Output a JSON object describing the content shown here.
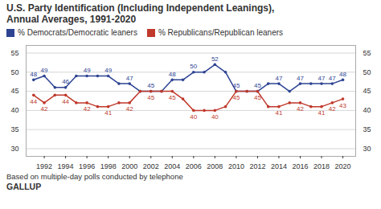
{
  "chart_data": {
    "type": "line",
    "title": "U.S. Party Identification (Including Independent Leanings),\nAnnual Averages, 1991-2020",
    "x": [
      1991,
      1992,
      1993,
      1994,
      1995,
      1996,
      1997,
      1998,
      1999,
      2000,
      2001,
      2002,
      2003,
      2004,
      2005,
      2006,
      2007,
      2008,
      2009,
      2010,
      2011,
      2012,
      2013,
      2014,
      2015,
      2016,
      2017,
      2018,
      2019,
      2020
    ],
    "series": [
      {
        "name": "% Democrats/Democratic leaners",
        "color": "#2e4493",
        "values": [
          48,
          49,
          46,
          46,
          49,
          49,
          49,
          49,
          47,
          47,
          45,
          45,
          45,
          48,
          48,
          50,
          50,
          52,
          50,
          45,
          45,
          45,
          47,
          47,
          45,
          47,
          47,
          47,
          47,
          48
        ],
        "value_labels": [
          "48",
          "49",
          null,
          "46",
          null,
          "49",
          null,
          "49",
          null,
          "47",
          null,
          "45",
          null,
          "48",
          null,
          "50",
          null,
          "52",
          null,
          "45",
          null,
          "45",
          null,
          "47",
          null,
          "47",
          null,
          "47",
          "47",
          "48"
        ]
      },
      {
        "name": "% Republicans/Republican leaners",
        "color": "#c0392b",
        "values": [
          44,
          42,
          44,
          44,
          42,
          42,
          41,
          41,
          42,
          42,
          45,
          45,
          45,
          45,
          43,
          40,
          40,
          40,
          41,
          45,
          45,
          45,
          41,
          41,
          42,
          42,
          41,
          41,
          42,
          43
        ],
        "value_labels": [
          "44",
          "42",
          null,
          "44",
          null,
          "42",
          null,
          "41",
          null,
          "42",
          null,
          "45",
          null,
          "45",
          null,
          "40",
          null,
          "40",
          null,
          "45",
          null,
          "45",
          null,
          "41",
          null,
          "42",
          null,
          "41",
          "42",
          "43"
        ]
      }
    ],
    "xlim": [
      1990.3,
      2021.2
    ],
    "xticks": [
      1992,
      1994,
      1996,
      1998,
      2000,
      2002,
      2004,
      2006,
      2008,
      2010,
      2012,
      2014,
      2016,
      2018,
      2020
    ],
    "ylim": [
      28,
      57
    ],
    "yticks": [
      30,
      35,
      40,
      45,
      50,
      55
    ],
    "y2lim": [
      28,
      57
    ],
    "y2ticks": [
      30,
      35,
      40,
      45,
      50,
      55
    ],
    "grid": true,
    "legend": "top",
    "marker": "circle",
    "data_labels": true,
    "annotations": [
      "Based on multiple-day polls conducted by telephone",
      "GALLUP"
    ]
  }
}
